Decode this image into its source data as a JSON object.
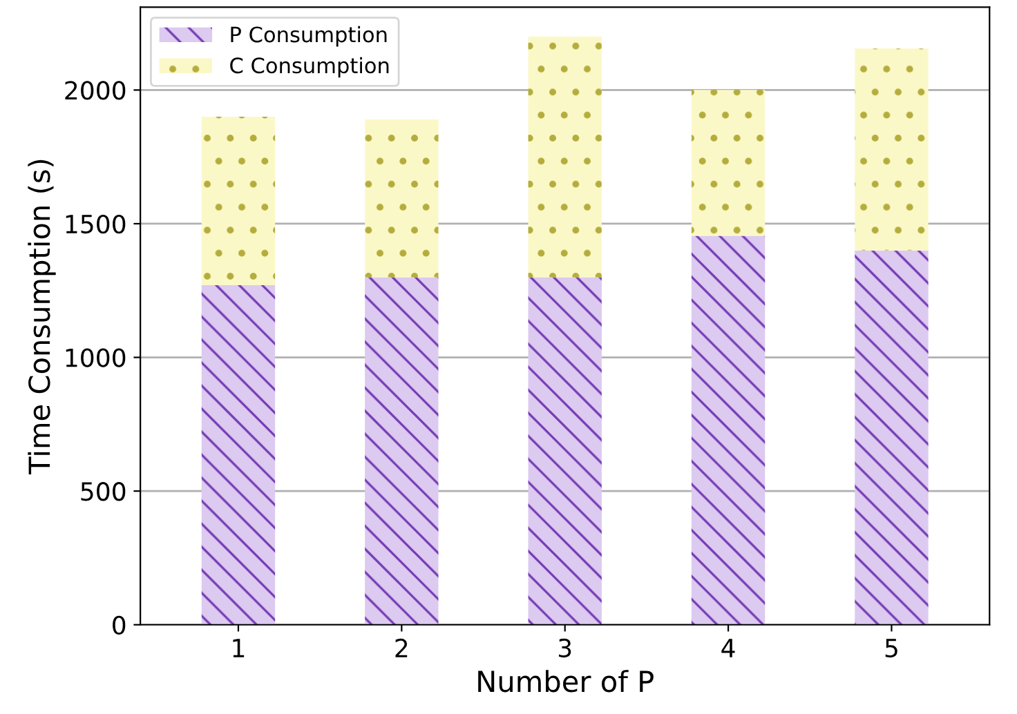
{
  "chart_data": {
    "type": "bar",
    "stacked": true,
    "xlabel": "Number of P",
    "ylabel": "Time Consumption (s)",
    "categories": [
      "1",
      "2",
      "3",
      "4",
      "5"
    ],
    "series": [
      {
        "name": "P Consumption",
        "color": "#dccaf0",
        "values": [
          1270,
          1300,
          1300,
          1455,
          1400
        ]
      },
      {
        "name": "C Consumption",
        "color": "#fbf8c8",
        "values": [
          630,
          590,
          900,
          545,
          755
        ]
      }
    ],
    "ylim": [
      0,
      2310
    ],
    "yticks": [
      0,
      500,
      1000,
      1500,
      2000
    ],
    "grid": "y",
    "legend": "top left"
  }
}
